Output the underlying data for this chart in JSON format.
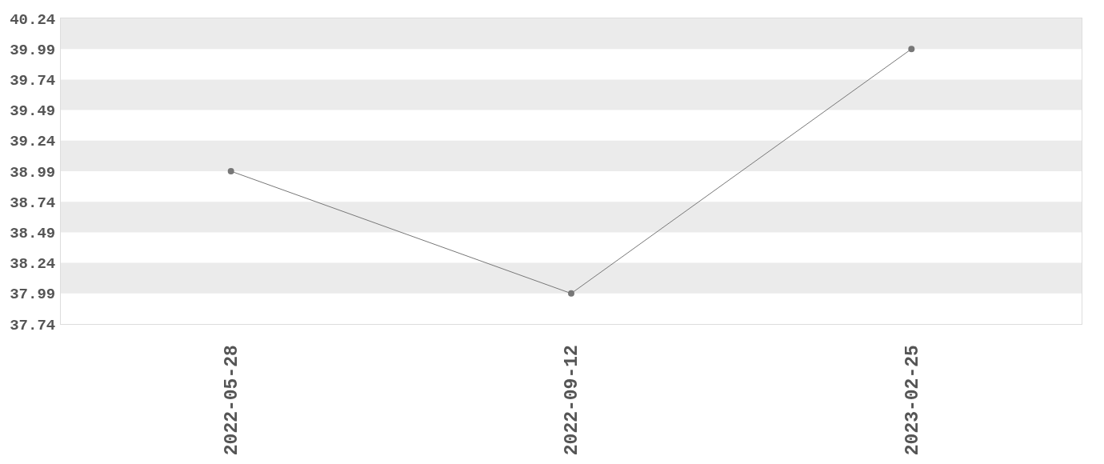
{
  "chart_data": {
    "type": "line",
    "categories": [
      "2022-05-28",
      "2022-09-12",
      "2023-02-25"
    ],
    "series": [
      {
        "color": "#777777",
        "values": [
          38.99,
          37.99,
          39.99
        ]
      }
    ],
    "ylim": [
      37.74,
      40.24
    ],
    "yticks": [
      37.74,
      37.99,
      38.24,
      38.49,
      38.74,
      38.99,
      39.24,
      39.49,
      39.74,
      39.99,
      40.24
    ],
    "bands": [
      {
        "axis": "y",
        "from": 37.99,
        "to": 38.24,
        "color": "#ebebeb"
      },
      {
        "axis": "y",
        "from": 38.49,
        "to": 38.74,
        "color": "#ebebeb"
      },
      {
        "axis": "y",
        "from": 38.99,
        "to": 39.24,
        "color": "#ebebeb"
      },
      {
        "axis": "y",
        "from": 39.49,
        "to": 39.74,
        "color": "#ebebeb"
      },
      {
        "axis": "y",
        "from": 39.99,
        "to": 40.24,
        "color": "#ebebeb"
      }
    ],
    "marker": "circle",
    "line_style": "solid"
  }
}
